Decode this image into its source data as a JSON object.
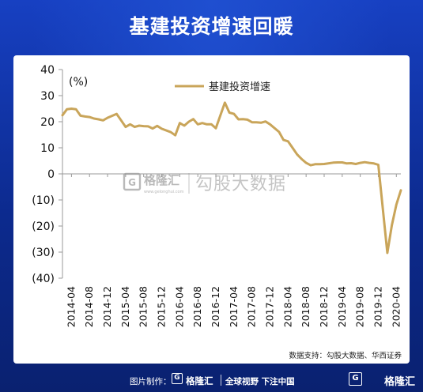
{
  "page": {
    "title": "基建投资增速回暖",
    "source": "数据支持：勾股大数据、华西证券",
    "watermark_brand": "格隆汇",
    "watermark_sub": "www.gelonghui.com",
    "watermark_text": "勾股大数据",
    "footer_made": "图片制作：",
    "footer_brand": "格隆汇",
    "footer_slogan": "全球视野 下注中国",
    "footer_brand_right": "格隆汇",
    "logo_glyph": "G",
    "colors": {
      "background": "#0c2a8e",
      "line": "#c9a55a",
      "panel": "#ffffff"
    }
  },
  "chart_data": {
    "type": "line",
    "title": "",
    "xlabel": "",
    "ylabel": "(%)",
    "ylim": [
      -40,
      40
    ],
    "yticks": [
      40,
      30,
      20,
      10,
      0,
      -10,
      -20,
      -30,
      -40
    ],
    "ytick_labels": [
      "40",
      "30",
      "20",
      "10",
      "0",
      "(10)",
      "(20)",
      "(30)",
      "(40)"
    ],
    "xtick_labels": [
      "2014-04",
      "2014-08",
      "2014-12",
      "2015-04",
      "2015-08",
      "2015-12",
      "2016-04",
      "2016-08",
      "2016-12",
      "2017-04",
      "2017-08",
      "2017-12",
      "2018-04",
      "2018-08",
      "2018-12",
      "2019-04",
      "2019-08",
      "2019-12",
      "2020-04"
    ],
    "legend_position": "top",
    "grid": false,
    "series": [
      {
        "name": "基建投资增速",
        "color": "#c9a55a",
        "x": [
          "2014-02",
          "2014-03",
          "2014-04",
          "2014-05",
          "2014-06",
          "2014-07",
          "2014-08",
          "2014-09",
          "2014-10",
          "2014-11",
          "2014-12",
          "2015-02",
          "2015-03",
          "2015-04",
          "2015-05",
          "2015-06",
          "2015-07",
          "2015-08",
          "2015-09",
          "2015-10",
          "2015-11",
          "2015-12",
          "2016-02",
          "2016-03",
          "2016-04",
          "2016-05",
          "2016-06",
          "2016-07",
          "2016-08",
          "2016-09",
          "2016-10",
          "2016-11",
          "2016-12",
          "2017-02",
          "2017-03",
          "2017-04",
          "2017-05",
          "2017-06",
          "2017-07",
          "2017-08",
          "2017-09",
          "2017-10",
          "2017-11",
          "2017-12",
          "2018-02",
          "2018-03",
          "2018-04",
          "2018-05",
          "2018-06",
          "2018-07",
          "2018-08",
          "2018-09",
          "2018-10",
          "2018-11",
          "2018-12",
          "2019-02",
          "2019-03",
          "2019-04",
          "2019-05",
          "2019-06",
          "2019-07",
          "2019-08",
          "2019-09",
          "2019-10",
          "2019-11",
          "2019-12",
          "2020-02",
          "2020-03",
          "2020-04",
          "2020-05"
        ],
        "values": [
          22.5,
          24.8,
          25.0,
          24.8,
          22.3,
          22.0,
          21.8,
          21.2,
          20.9,
          20.5,
          21.5,
          23.0,
          20.5,
          18.0,
          19.0,
          18.0,
          18.5,
          18.3,
          18.2,
          17.4,
          18.4,
          17.3,
          16.0,
          14.8,
          19.5,
          18.5,
          20.0,
          21.0,
          19.0,
          19.5,
          19.0,
          19.0,
          17.5,
          27.3,
          23.5,
          23.0,
          20.9,
          21.0,
          20.8,
          19.8,
          19.8,
          19.6,
          20.1,
          19.0,
          16.1,
          13.0,
          12.5,
          10.0,
          7.5,
          5.7,
          4.2,
          3.3,
          3.7,
          3.7,
          3.8,
          4.3,
          4.4,
          4.4,
          4.0,
          4.1,
          3.8,
          4.2,
          4.5,
          4.2,
          4.0,
          3.5,
          -30.3,
          -19.7,
          -11.8,
          -6.3
        ]
      }
    ]
  }
}
